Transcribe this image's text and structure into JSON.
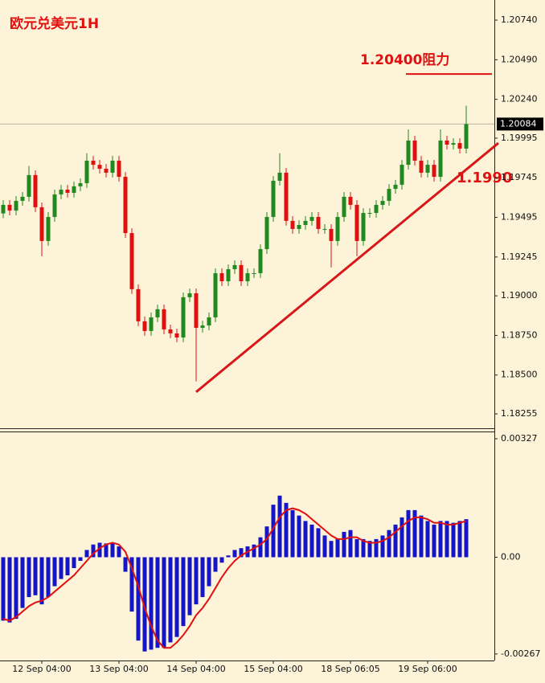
{
  "chart_data": [
    {
      "type": "candlestick",
      "title": "欧元兑美元1H",
      "categories": [
        null,
        null,
        null,
        null,
        null,
        null,
        "12 Sep 04:00",
        null,
        null,
        null,
        null,
        null,
        null,
        null,
        null,
        null,
        null,
        null,
        "13 Sep 04:00",
        null,
        null,
        null,
        null,
        null,
        null,
        null,
        null,
        null,
        null,
        null,
        "14 Sep 04:00",
        null,
        null,
        null,
        null,
        null,
        null,
        null,
        null,
        null,
        null,
        null,
        "15 Sep 04:00",
        null,
        null,
        null,
        null,
        null,
        null,
        null,
        null,
        null,
        null,
        null,
        "18 Sep 06:05",
        null,
        null,
        null,
        null,
        null,
        null,
        null,
        null,
        null,
        null,
        null,
        "19 Sep 06:00",
        null,
        null,
        null,
        null,
        null,
        null
      ],
      "open": [
        1.1952,
        1.19574,
        1.19538,
        1.19599,
        1.19625,
        1.19762,
        1.19559,
        1.19346,
        1.19498,
        1.1964,
        1.1967,
        1.1965,
        1.19691,
        1.19711,
        1.19853,
        1.19827,
        1.19802,
        1.19777,
        1.19853,
        1.19751,
        1.19396,
        1.19042,
        1.18839,
        1.18778,
        1.18864,
        1.18915,
        1.18788,
        1.18763,
        1.18737,
        1.18991,
        1.19016,
        1.18798,
        1.18813,
        1.18864,
        1.19143,
        1.19092,
        1.19168,
        1.19194,
        1.19092,
        1.19143,
        1.19143,
        1.19295,
        1.19498,
        1.19726,
        1.19777,
        1.19473,
        1.19422,
        1.19447,
        1.19473,
        1.19498,
        1.19422,
        1.19422,
        1.19346,
        1.19498,
        1.19625,
        1.19574,
        1.19346,
        1.19523,
        1.19523,
        1.19574,
        1.19599,
        1.19675,
        1.19701,
        1.19827,
        1.1998,
        1.19853,
        1.19777,
        1.19827,
        1.19751,
        1.1998,
        1.19954,
        1.19964,
        1.19929
      ],
      "high": [
        1.19604,
        1.19604,
        1.19629,
        1.19655,
        1.1982,
        1.19792,
        1.19589,
        1.19528,
        1.1967,
        1.197,
        1.197,
        1.19721,
        1.19741,
        1.199,
        1.19883,
        1.19857,
        1.19832,
        1.19883,
        1.19883,
        1.19781,
        1.19426,
        1.19072,
        1.18869,
        1.18894,
        1.18945,
        1.18945,
        1.18818,
        1.18793,
        1.19021,
        1.19046,
        1.19046,
        1.18843,
        1.18894,
        1.19173,
        1.19173,
        1.19198,
        1.19224,
        1.19224,
        1.19173,
        1.19173,
        1.19325,
        1.19528,
        1.19756,
        1.199,
        1.19807,
        1.19503,
        1.19477,
        1.19503,
        1.19528,
        1.19528,
        1.19452,
        1.19452,
        1.19528,
        1.19655,
        1.19655,
        1.19604,
        1.19553,
        1.19553,
        1.19604,
        1.19629,
        1.19705,
        1.19731,
        1.19857,
        1.2005,
        1.2001,
        1.19883,
        1.19857,
        1.19857,
        1.2005,
        1.2001,
        1.19994,
        1.19994,
        1.202
      ],
      "low": [
        1.1949,
        1.19508,
        1.19508,
        1.19569,
        1.19595,
        1.19529,
        1.1925,
        1.19316,
        1.19468,
        1.1961,
        1.1962,
        1.1962,
        1.19661,
        1.19681,
        1.19797,
        1.19772,
        1.19747,
        1.19747,
        1.19721,
        1.19366,
        1.19012,
        1.18809,
        1.18748,
        1.18748,
        1.18834,
        1.18758,
        1.18733,
        1.18707,
        1.18707,
        1.18961,
        1.1846,
        1.18768,
        1.18783,
        1.18834,
        1.19062,
        1.19062,
        1.19138,
        1.19062,
        1.19062,
        1.19113,
        1.19113,
        1.19265,
        1.19468,
        1.19696,
        1.19443,
        1.19392,
        1.19392,
        1.19417,
        1.19443,
        1.19392,
        1.19392,
        1.1918,
        1.19316,
        1.19468,
        1.19544,
        1.1925,
        1.19316,
        1.19493,
        1.19493,
        1.19544,
        1.19569,
        1.19645,
        1.19671,
        1.19797,
        1.19823,
        1.19747,
        1.19747,
        1.19721,
        1.19721,
        1.19924,
        1.19924,
        1.19899,
        1.19899
      ],
      "close": [
        1.19574,
        1.19538,
        1.19599,
        1.19625,
        1.19762,
        1.19559,
        1.19346,
        1.19498,
        1.1964,
        1.1967,
        1.1965,
        1.19691,
        1.19711,
        1.19853,
        1.19827,
        1.19802,
        1.19777,
        1.19853,
        1.19751,
        1.19396,
        1.19042,
        1.18839,
        1.18778,
        1.18864,
        1.18915,
        1.18788,
        1.18763,
        1.18737,
        1.18991,
        1.19016,
        1.18798,
        1.18813,
        1.18864,
        1.19143,
        1.19092,
        1.19168,
        1.19194,
        1.19092,
        1.19143,
        1.19143,
        1.19295,
        1.19498,
        1.19726,
        1.19777,
        1.19473,
        1.19422,
        1.19447,
        1.19473,
        1.19498,
        1.19422,
        1.19422,
        1.19346,
        1.19498,
        1.19625,
        1.19574,
        1.19346,
        1.19523,
        1.19523,
        1.19574,
        1.19599,
        1.19675,
        1.19701,
        1.19827,
        1.1998,
        1.19853,
        1.19777,
        1.19827,
        1.19751,
        1.1998,
        1.19954,
        1.19964,
        1.19929,
        1.20084
      ],
      "up_color": "#1f8a1f",
      "down_color": "#e01010",
      "ylim": [
        1.18164,
        1.20867
      ],
      "yticks": [
        {
          "value": 1.2074,
          "label": "1.20740"
        },
        {
          "value": 1.2049,
          "label": "1.20490"
        },
        {
          "value": 1.2024,
          "label": "1.20240"
        },
        1.19995,
        1.19745,
        1.19495,
        1.19245,
        {
          "value": 1.19,
          "label": "1.19000"
        },
        {
          "value": 1.1875,
          "label": "1.18750"
        },
        {
          "value": 1.185,
          "label": "1.18500"
        },
        1.18255
      ],
      "current_price": 1.20084,
      "resistance_label": "1.20400阻力",
      "resistance_level": 1.204,
      "support_label": "1.1990",
      "trendline": {
        "x": [
          30,
          77
        ],
        "y": [
          1.18393,
          1.19964
        ],
        "color": "#d81818"
      }
    },
    {
      "type": "macd",
      "histogram": {
        "color": "#1414c8",
        "values": [
          -0.00175,
          -0.0018,
          -0.0017,
          -0.0014,
          -0.0011,
          -0.00105,
          -0.0013,
          -0.0011,
          -0.0008,
          -0.0006,
          -0.0005,
          -0.0003,
          -0.0001,
          0.0002,
          0.00035,
          0.0004,
          0.00038,
          0.0004,
          0.0003,
          -0.0004,
          -0.0015,
          -0.0023,
          -0.0026,
          -0.00255,
          -0.0025,
          -0.0025,
          -0.00235,
          -0.0022,
          -0.0019,
          -0.0016,
          -0.0013,
          -0.0011,
          -0.0008,
          -0.0004,
          -0.00015,
          5e-05,
          0.0002,
          0.00025,
          0.0003,
          0.00035,
          0.00055,
          0.00085,
          0.00145,
          0.0017,
          0.0015,
          0.0013,
          0.00115,
          0.001,
          0.0009,
          0.0008,
          0.0006,
          0.00045,
          0.0005,
          0.0007,
          0.00075,
          0.0005,
          0.0005,
          0.00045,
          0.0005,
          0.0006,
          0.00075,
          0.0009,
          0.0011,
          0.0013,
          0.0013,
          0.00115,
          0.001,
          0.0009,
          0.001,
          0.001,
          0.00095,
          0.001,
          0.00105
        ]
      },
      "signal": {
        "color": "#e01010",
        "values": [
          -0.0017,
          -0.00175,
          -0.00165,
          -0.0015,
          -0.00135,
          -0.00125,
          -0.0012,
          -0.0011,
          -0.00095,
          -0.0008,
          -0.00065,
          -0.0005,
          -0.0003,
          -0.0001,
          0.0001,
          0.00025,
          0.00035,
          0.0004,
          0.00035,
          0.00015,
          -0.0003,
          -0.0008,
          -0.0014,
          -0.0019,
          -0.0023,
          -0.0025,
          -0.0025,
          -0.00235,
          -0.00215,
          -0.0019,
          -0.0016,
          -0.0014,
          -0.00115,
          -0.00085,
          -0.00055,
          -0.0003,
          -0.0001,
          5e-05,
          0.00015,
          0.00025,
          0.00035,
          0.0005,
          0.0008,
          0.0011,
          0.0013,
          0.00135,
          0.0013,
          0.0012,
          0.00105,
          0.0009,
          0.00075,
          0.0006,
          0.0005,
          0.0005,
          0.00055,
          0.00055,
          0.00045,
          0.0004,
          0.0004,
          0.00045,
          0.00055,
          0.0007,
          0.00085,
          0.001,
          0.0011,
          0.0011,
          0.00105,
          0.00095,
          0.00095,
          0.0009,
          0.0009,
          0.00095,
          0.001
        ]
      },
      "ylim": [
        -0.00285,
        0.00347
      ],
      "yticks": [
        0.00327,
        {
          "value": 0,
          "label": "0.00"
        },
        -0.00267
      ]
    }
  ]
}
